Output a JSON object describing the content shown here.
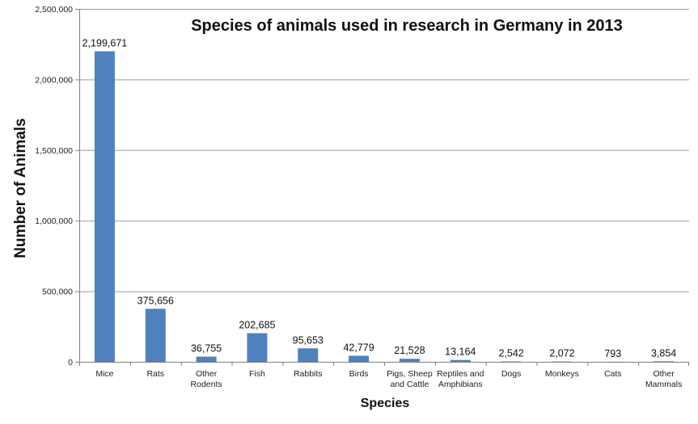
{
  "chart_data": {
    "type": "bar",
    "title": "Species of animals used in research in Germany in 2013",
    "xlabel": "Species",
    "ylabel": "Number of Animals",
    "ylim": [
      0,
      2500000
    ],
    "yticks": [
      "0",
      "500,000",
      "1,000,000",
      "1,500,000",
      "2,000,000",
      "2,500,000"
    ],
    "yticks_values": [
      0,
      500000,
      1000000,
      1500000,
      2000000,
      2500000
    ],
    "grid": true,
    "legend": "none",
    "bar_color": "#4f81bd",
    "categories": [
      "Mice",
      "Rats",
      "Other Rodents",
      "Fish",
      "Rabbits",
      "Birds",
      "Pigs, Sheep and Cattle",
      "Reptiles and Amphibians",
      "Dogs",
      "Monkeys",
      "Cats",
      "Other Mammals"
    ],
    "category_lines": [
      [
        "Mice"
      ],
      [
        "Rats"
      ],
      [
        "Other",
        "Rodents"
      ],
      [
        "Fish"
      ],
      [
        "Rabbits"
      ],
      [
        "Birds"
      ],
      [
        "Pigs, Sheep",
        "and Cattle"
      ],
      [
        "Reptiles and",
        "Amphibians"
      ],
      [
        "Dogs"
      ],
      [
        "Monkeys"
      ],
      [
        "Cats"
      ],
      [
        "Other",
        "Mammals"
      ]
    ],
    "values": [
      2199671,
      375656,
      36755,
      202685,
      95653,
      42779,
      21528,
      13164,
      2542,
      2072,
      793,
      3854
    ],
    "data_labels": [
      "2,199,671",
      "375,656",
      "36,755",
      "202,685",
      "95,653",
      "42,779",
      "21,528",
      "13,164",
      "2,542",
      "2,072",
      "793",
      "3,854"
    ]
  }
}
